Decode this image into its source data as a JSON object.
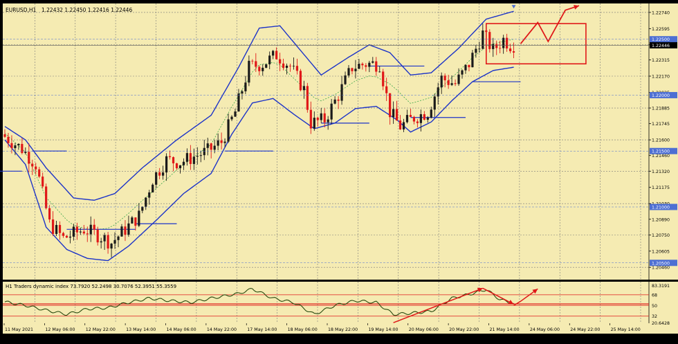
{
  "chart_data": {
    "type": "candlestick",
    "symbol_label": "EURUSD,H1",
    "ohlc_header": "1.22432 1.22450 1.22416 1.22446",
    "title": "",
    "grid": true,
    "colors": {
      "background": "#f5ebb2",
      "grid": "#7a7a7a",
      "bull_candle": "#1a1a1a",
      "bear_candle": "#e01818",
      "envelope": "#1c33c8",
      "midline": "#3aa84a",
      "level_segment": "#1c33c8",
      "annotation": "#e01818",
      "price_tag": "#4d6fd3",
      "indicator_line": "#2a4b10"
    },
    "price_axis": {
      "range": [
        1.2035,
        1.2282
      ],
      "tick_labels": [
        {
          "value": 1.2274,
          "label": "1.22740"
        },
        {
          "value": 1.22595,
          "label": "1.22595"
        },
        {
          "value": 1.2245,
          "label": "1.22450"
        },
        {
          "value": 1.22315,
          "label": "1.22315"
        },
        {
          "value": 1.2217,
          "label": "1.22170"
        },
        {
          "value": 1.22025,
          "label": "1.22025"
        },
        {
          "value": 1.21885,
          "label": "1.21885"
        },
        {
          "value": 1.21745,
          "label": "1.21745"
        },
        {
          "value": 1.216,
          "label": "1.21600"
        },
        {
          "value": 1.2146,
          "label": "1.21460"
        },
        {
          "value": 1.2132,
          "label": "1.21320"
        },
        {
          "value": 1.21175,
          "label": "1.21175"
        },
        {
          "value": 1.2103,
          "label": "1.21030"
        },
        {
          "value": 1.2089,
          "label": "1.20890"
        },
        {
          "value": 1.2075,
          "label": "1.20750"
        },
        {
          "value": 1.20605,
          "label": "1.20605"
        },
        {
          "value": 1.2046,
          "label": "1.20460"
        }
      ],
      "level_tags": [
        {
          "value": 1.225,
          "label": "1.22500"
        },
        {
          "value": 1.22,
          "label": "1.22000"
        },
        {
          "value": 1.215,
          "label": "1.21500"
        },
        {
          "value": 1.21,
          "label": "1.21000"
        },
        {
          "value": 1.205,
          "label": "1.20500"
        }
      ],
      "current_price": {
        "value": 1.22446,
        "label": "1.22446"
      }
    },
    "time_axis": {
      "labels": [
        "11 May 2021",
        "12 May 06:00",
        "12 May 22:00",
        "13 May 14:00",
        "14 May 06:00",
        "14 May 22:00",
        "17 May 14:00",
        "18 May 06:00",
        "18 May 22:00",
        "19 May 14:00",
        "20 May 06:00",
        "20 May 22:00",
        "21 May 14:00",
        "24 May 06:00",
        "24 May 22:00",
        "25 May 14:00"
      ]
    },
    "anchors": [
      {
        "i": 0,
        "p": 1.2165
      },
      {
        "i": 6,
        "p": 1.2152
      },
      {
        "i": 10,
        "p": 1.2138
      },
      {
        "i": 14,
        "p": 1.2085
      },
      {
        "i": 18,
        "p": 1.2072
      },
      {
        "i": 24,
        "p": 1.208
      },
      {
        "i": 28,
        "p": 1.2075
      },
      {
        "i": 32,
        "p": 1.2068
      },
      {
        "i": 36,
        "p": 1.208
      },
      {
        "i": 40,
        "p": 1.2092
      },
      {
        "i": 44,
        "p": 1.2125
      },
      {
        "i": 48,
        "p": 1.2142
      },
      {
        "i": 52,
        "p": 1.214
      },
      {
        "i": 56,
        "p": 1.2145
      },
      {
        "i": 60,
        "p": 1.215
      },
      {
        "i": 64,
        "p": 1.2158
      },
      {
        "i": 68,
        "p": 1.2185
      },
      {
        "i": 72,
        "p": 1.2225
      },
      {
        "i": 76,
        "p": 1.2228
      },
      {
        "i": 80,
        "p": 1.2236
      },
      {
        "i": 84,
        "p": 1.2226
      },
      {
        "i": 88,
        "p": 1.2205
      },
      {
        "i": 90,
        "p": 1.2175
      },
      {
        "i": 94,
        "p": 1.2178
      },
      {
        "i": 98,
        "p": 1.22
      },
      {
        "i": 102,
        "p": 1.2225
      },
      {
        "i": 106,
        "p": 1.2228
      },
      {
        "i": 110,
        "p": 1.2228
      },
      {
        "i": 113,
        "p": 1.2185
      },
      {
        "i": 116,
        "p": 1.2172
      },
      {
        "i": 120,
        "p": 1.218
      },
      {
        "i": 124,
        "p": 1.2185
      },
      {
        "i": 128,
        "p": 1.2215
      },
      {
        "i": 132,
        "p": 1.221
      },
      {
        "i": 136,
        "p": 1.2228
      },
      {
        "i": 140,
        "p": 1.2255
      },
      {
        "i": 143,
        "p": 1.224
      },
      {
        "i": 146,
        "p": 1.225
      },
      {
        "i": 148,
        "p": 1.2245
      }
    ],
    "total_bars": 149,
    "envelope": {
      "upper": [
        {
          "i": 0,
          "p": 1.2172
        },
        {
          "i": 6,
          "p": 1.216
        },
        {
          "i": 12,
          "p": 1.2135
        },
        {
          "i": 20,
          "p": 1.2108
        },
        {
          "i": 26,
          "p": 1.2106
        },
        {
          "i": 32,
          "p": 1.2112
        },
        {
          "i": 40,
          "p": 1.2135
        },
        {
          "i": 50,
          "p": 1.216
        },
        {
          "i": 60,
          "p": 1.2182
        },
        {
          "i": 68,
          "p": 1.2225
        },
        {
          "i": 74,
          "p": 1.226
        },
        {
          "i": 80,
          "p": 1.2262
        },
        {
          "i": 86,
          "p": 1.224
        },
        {
          "i": 92,
          "p": 1.2218
        },
        {
          "i": 100,
          "p": 1.2234
        },
        {
          "i": 106,
          "p": 1.2245
        },
        {
          "i": 112,
          "p": 1.2238
        },
        {
          "i": 118,
          "p": 1.2218
        },
        {
          "i": 124,
          "p": 1.222
        },
        {
          "i": 132,
          "p": 1.2242
        },
        {
          "i": 140,
          "p": 1.2268
        },
        {
          "i": 148,
          "p": 1.2275
        }
      ],
      "lower": [
        {
          "i": 0,
          "p": 1.216
        },
        {
          "i": 6,
          "p": 1.2138
        },
        {
          "i": 12,
          "p": 1.2082
        },
        {
          "i": 18,
          "p": 1.2062
        },
        {
          "i": 24,
          "p": 1.2054
        },
        {
          "i": 30,
          "p": 1.2052
        },
        {
          "i": 36,
          "p": 1.2065
        },
        {
          "i": 44,
          "p": 1.2088
        },
        {
          "i": 52,
          "p": 1.2112
        },
        {
          "i": 60,
          "p": 1.213
        },
        {
          "i": 66,
          "p": 1.2165
        },
        {
          "i": 72,
          "p": 1.2193
        },
        {
          "i": 78,
          "p": 1.2197
        },
        {
          "i": 84,
          "p": 1.2183
        },
        {
          "i": 90,
          "p": 1.217
        },
        {
          "i": 96,
          "p": 1.2175
        },
        {
          "i": 102,
          "p": 1.2188
        },
        {
          "i": 108,
          "p": 1.219
        },
        {
          "i": 114,
          "p": 1.2178
        },
        {
          "i": 118,
          "p": 1.2167
        },
        {
          "i": 124,
          "p": 1.2176
        },
        {
          "i": 130,
          "p": 1.2195
        },
        {
          "i": 136,
          "p": 1.2212
        },
        {
          "i": 142,
          "p": 1.2222
        },
        {
          "i": 148,
          "p": 1.2225
        }
      ]
    },
    "level_segments": [
      {
        "p": 1.2132,
        "i0": -2,
        "i1": 5
      },
      {
        "p": 1.215,
        "i0": 8,
        "i1": 18
      },
      {
        "p": 1.208,
        "i0": 18,
        "i1": 38
      },
      {
        "p": 1.2085,
        "i0": 38,
        "i1": 50
      },
      {
        "p": 1.215,
        "i0": 64,
        "i1": 78
      },
      {
        "p": 1.2175,
        "i0": 92,
        "i1": 106
      },
      {
        "p": 1.2226,
        "i0": 106,
        "i1": 122
      },
      {
        "p": 1.218,
        "i0": 118,
        "i1": 134
      },
      {
        "p": 1.2212,
        "i0": 136,
        "i1": 150
      }
    ],
    "annotations": {
      "projection_box": {
        "i0": 140,
        "i1": 169,
        "p_top": 1.2264,
        "p_bottom": 1.2228
      },
      "projection_path": [
        {
          "i": 150,
          "p": 1.2246
        },
        {
          "i": 155,
          "p": 1.2265
        },
        {
          "i": 158,
          "p": 1.2248
        },
        {
          "i": 163,
          "p": 1.2276
        },
        {
          "i": 167,
          "p": 1.228
        }
      ]
    },
    "indicator": {
      "label": "H1 Traders dynamic index 73.7920 52.2498 30.7076 52.3951 55.3559",
      "range": [
        20,
        90
      ],
      "tick_labels": [
        {
          "value": 83.3191,
          "label": "83.3191"
        },
        {
          "value": 68,
          "label": "68"
        },
        {
          "value": 50,
          "label": "50"
        },
        {
          "value": 32,
          "label": "32"
        },
        {
          "value": 20.6428,
          "label": "20.6428"
        }
      ],
      "levels": [
        68,
        50,
        32
      ],
      "anchors": [
        {
          "i": 0,
          "v": 56
        },
        {
          "i": 6,
          "v": 50
        },
        {
          "i": 12,
          "v": 42
        },
        {
          "i": 18,
          "v": 35
        },
        {
          "i": 24,
          "v": 44
        },
        {
          "i": 30,
          "v": 46
        },
        {
          "i": 36,
          "v": 55
        },
        {
          "i": 42,
          "v": 62
        },
        {
          "i": 48,
          "v": 58
        },
        {
          "i": 54,
          "v": 55
        },
        {
          "i": 60,
          "v": 62
        },
        {
          "i": 68,
          "v": 70
        },
        {
          "i": 72,
          "v": 78
        },
        {
          "i": 78,
          "v": 62
        },
        {
          "i": 84,
          "v": 55
        },
        {
          "i": 90,
          "v": 35
        },
        {
          "i": 96,
          "v": 50
        },
        {
          "i": 102,
          "v": 58
        },
        {
          "i": 108,
          "v": 55
        },
        {
          "i": 113,
          "v": 35
        },
        {
          "i": 118,
          "v": 37
        },
        {
          "i": 124,
          "v": 40
        },
        {
          "i": 130,
          "v": 62
        },
        {
          "i": 136,
          "v": 70
        },
        {
          "i": 140,
          "v": 77
        },
        {
          "i": 144,
          "v": 60
        },
        {
          "i": 148,
          "v": 53
        }
      ],
      "arrows": [
        {
          "from": {
            "i": 113,
            "v": 21
          },
          "to": {
            "i": 139,
            "v": 79
          }
        },
        {
          "from": {
            "i": 139,
            "v": 79
          },
          "to": {
            "i": 148,
            "v": 52
          }
        },
        {
          "path": [
            {
              "i": 148,
              "v": 50
            },
            {
              "i": 150,
              "v": 57
            },
            {
              "i": 155,
              "v": 78
            }
          ]
        }
      ]
    }
  }
}
